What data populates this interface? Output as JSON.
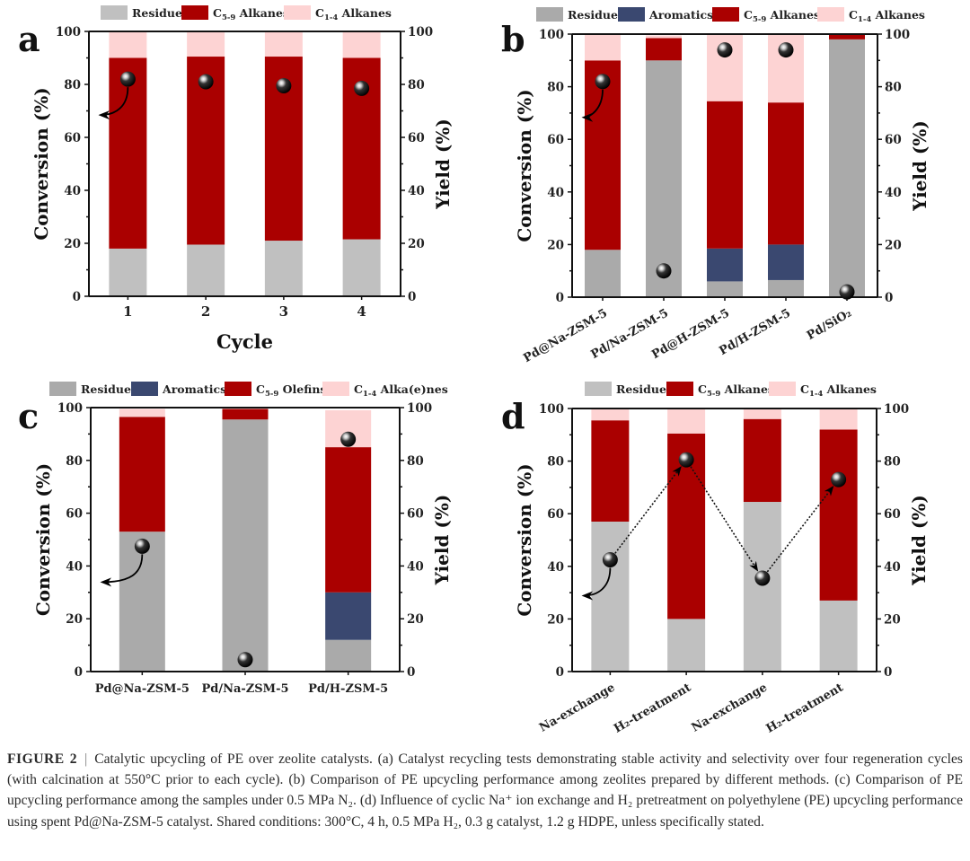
{
  "colors": {
    "residue_light": "#c0c0c0",
    "residue_dark": "#aaaaaa",
    "aromatics": "#3a4870",
    "c59": "#aa0000",
    "c14": "#fdd3d3",
    "axis": "#111111"
  },
  "caption": {
    "label": "FIGURE 2",
    "separator": "|",
    "text": "Catalytic upcycling of PE over zeolite catalysts. (a) Catalyst recycling tests demonstrating stable activity and selectivity over four regeneration cycles (with calcination at 550°C prior to each cycle). (b) Comparison of PE upcycling performance among zeolites prepared by different methods. (c) Comparison of PE upcycling performance among the samples under 0.5 MPa N₂. (d) Influence of cyclic Na⁺ ion exchange and H₂ pretreatment on polyethylene (PE) upcycling performance using spent Pd@Na-ZSM-5 catalyst. Shared conditions: 300°C, 4 h, 0.5 MPa H₂, 0.3 g catalyst, 1.2 g HDPE, unless specifically stated."
  },
  "chart_data": [
    {
      "panel": "a",
      "type": "bar",
      "stacked": true,
      "title": "",
      "xlabel": "Cycle",
      "ylabel": "Conversion (%)",
      "y2label": "Yield (%)",
      "ylim": [
        0,
        100
      ],
      "y2lim": [
        0,
        100
      ],
      "yticks": [
        0,
        20,
        40,
        60,
        80,
        100
      ],
      "x_tick_rotation": 0,
      "legend_position": "top",
      "categories": [
        "1",
        "2",
        "3",
        "4"
      ],
      "series": [
        {
          "name": "Residue",
          "label_base": "Residue",
          "sub": "",
          "color_key": "residue_light",
          "values": [
            18,
            19.5,
            21,
            21.5
          ]
        },
        {
          "name": "C5-9 Alkanes",
          "label_base": "C",
          "sub": "5-9",
          "label_rest": " Alkanes",
          "color_key": "c59",
          "values": [
            72,
            71,
            69.5,
            68.5
          ]
        },
        {
          "name": "C1-4 Alkanes",
          "label_base": "C",
          "sub": "1-4",
          "label_rest": " Alkanes",
          "color_key": "c14",
          "values": [
            10,
            9.5,
            9.5,
            10
          ]
        }
      ],
      "yield_points": [
        82,
        81,
        79.5,
        78.5
      ],
      "yield_connectors": false,
      "axis_arrow_from_index": 0
    },
    {
      "panel": "b",
      "type": "bar",
      "stacked": true,
      "title": "",
      "xlabel": "",
      "ylabel": "Conversion (%)",
      "y2label": "Yield (%)",
      "ylim": [
        0,
        100
      ],
      "y2lim": [
        0,
        100
      ],
      "yticks": [
        0,
        20,
        40,
        60,
        80,
        100
      ],
      "x_tick_rotation": -30,
      "legend_position": "top",
      "categories": [
        "Pd@Na-ZSM-5",
        "Pd/Na-ZSM-5",
        "Pd@H-ZSM-5",
        "Pd/H-ZSM-5",
        "Pd/SiO₂"
      ],
      "series": [
        {
          "name": "Residue",
          "label_base": "Residue",
          "sub": "",
          "color_key": "residue_dark",
          "values": [
            18,
            90,
            6,
            6.5,
            98
          ]
        },
        {
          "name": "Aromatics",
          "label_base": "Aromatics",
          "sub": "",
          "color_key": "aromatics",
          "values": [
            0,
            0,
            12.5,
            13.5,
            0
          ]
        },
        {
          "name": "C5-9 Alkanes",
          "label_base": "C",
          "sub": "5-9",
          "label_rest": " Alkanes",
          "color_key": "c59",
          "values": [
            72,
            8.5,
            56,
            54,
            2
          ]
        },
        {
          "name": "C1-4 Alkanes",
          "label_base": "C",
          "sub": "1-4",
          "label_rest": " Alkanes",
          "color_key": "c14",
          "values": [
            10,
            1,
            25.5,
            26,
            0
          ]
        }
      ],
      "yield_points": [
        82,
        10,
        94,
        94,
        2
      ],
      "yield_connectors": false,
      "axis_arrow_from_index": 0
    },
    {
      "panel": "c",
      "type": "bar",
      "stacked": true,
      "title": "",
      "xlabel": "",
      "ylabel": "Conversion (%)",
      "y2label": "Yield (%)",
      "ylim": [
        0,
        100
      ],
      "y2lim": [
        0,
        100
      ],
      "yticks": [
        0,
        20,
        40,
        60,
        80,
        100
      ],
      "x_tick_rotation": 0,
      "legend_position": "top",
      "categories": [
        "Pd@Na-ZSM-5",
        "Pd/Na-ZSM-5",
        "Pd/H-ZSM-5"
      ],
      "series": [
        {
          "name": "Residue",
          "label_base": "Residue",
          "sub": "",
          "color_key": "residue_dark",
          "values": [
            53,
            95.5,
            12
          ]
        },
        {
          "name": "Aromatics",
          "label_base": "Aromatics",
          "sub": "",
          "color_key": "aromatics",
          "values": [
            0,
            0,
            18
          ]
        },
        {
          "name": "C5-9 Olefins",
          "label_base": "C",
          "sub": "5-9",
          "label_rest": " Olefins",
          "color_key": "c59",
          "values": [
            43.5,
            4,
            55
          ]
        },
        {
          "name": "C1-4 Alka(e)nes",
          "label_base": "C",
          "sub": "1-4",
          "label_rest": " Alka(e)nes",
          "color_key": "c14",
          "values": [
            3,
            0,
            14
          ]
        }
      ],
      "yield_points": [
        47.5,
        4.5,
        88
      ],
      "yield_connectors": false,
      "axis_arrow_from_index": 0
    },
    {
      "panel": "d",
      "type": "bar",
      "stacked": true,
      "title": "",
      "xlabel": "",
      "ylabel": "Conversion (%)",
      "y2label": "Yield (%)",
      "ylim": [
        0,
        100
      ],
      "y2lim": [
        0,
        100
      ],
      "yticks": [
        0,
        20,
        40,
        60,
        80,
        100
      ],
      "x_tick_rotation": -30,
      "legend_position": "top",
      "categories": [
        "Na-exchange",
        "H₂-treatment",
        "Na-exchange",
        "H₂-treatment"
      ],
      "series": [
        {
          "name": "Residue",
          "label_base": "Residue",
          "sub": "",
          "color_key": "residue_light",
          "values": [
            57,
            20,
            64.5,
            27
          ]
        },
        {
          "name": "C5-9 Alkanes",
          "label_base": "C",
          "sub": "5-9",
          "label_rest": " Alkanes",
          "color_key": "c59",
          "values": [
            38.5,
            70.5,
            31.5,
            65
          ]
        },
        {
          "name": "C1-4 Alkanes",
          "label_base": "C",
          "sub": "1-4",
          "label_rest": " Alkanes",
          "color_key": "c14",
          "values": [
            4.5,
            9.5,
            4,
            8
          ]
        }
      ],
      "yield_points": [
        42.5,
        80.5,
        35.5,
        73
      ],
      "yield_connectors": true,
      "axis_arrow_from_index": 0
    }
  ]
}
